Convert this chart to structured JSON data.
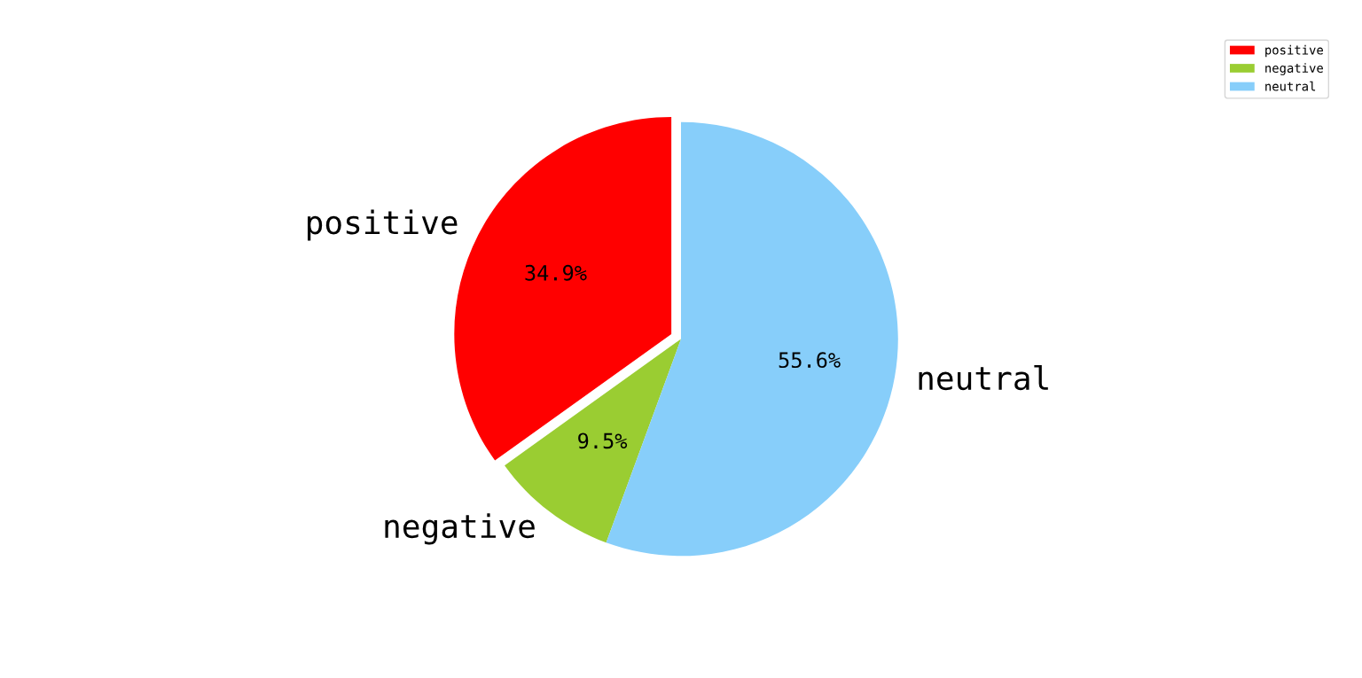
{
  "chart_data": {
    "type": "pie",
    "categories": [
      "positive",
      "negative",
      "neutral"
    ],
    "values": [
      34.9,
      9.5,
      55.6
    ],
    "colors": [
      "#ff0000",
      "#9acd32",
      "#87cefa"
    ],
    "value_labels": [
      "34.9%",
      "9.5%",
      "55.6%"
    ],
    "legend": "top right"
  }
}
